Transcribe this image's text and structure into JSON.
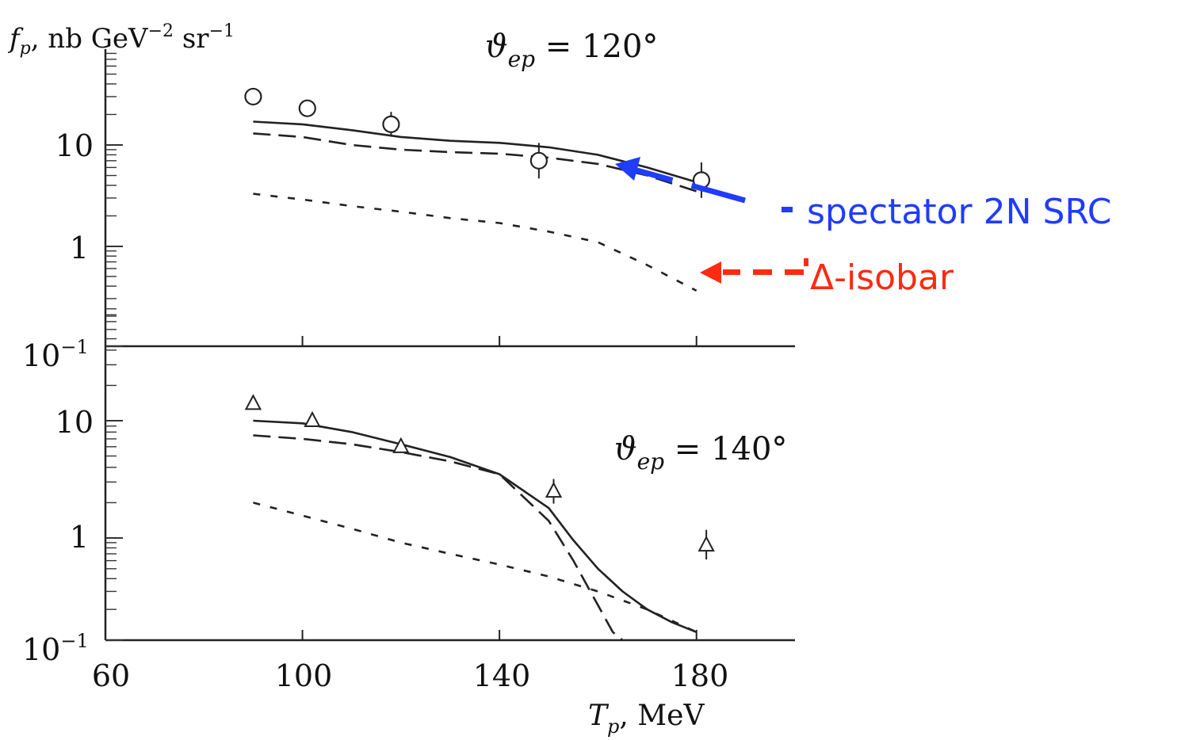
{
  "chart_data": [
    {
      "type": "line",
      "panel": "top",
      "annotation": "ϑ_ep = 120°",
      "xlim": [
        60,
        200
      ],
      "ylim": [
        0.1,
        80
      ],
      "yscale": "log",
      "grid": false,
      "series": [
        {
          "style": "solid",
          "x": [
            90,
            100,
            110,
            120,
            130,
            140,
            150,
            160,
            170,
            180
          ],
          "y": [
            17,
            16,
            14,
            12,
            11,
            10.5,
            9.5,
            8,
            6,
            4.3
          ]
        },
        {
          "style": "dashed",
          "x": [
            90,
            100,
            110,
            120,
            130,
            140,
            150,
            160,
            170,
            180
          ],
          "y": [
            13,
            12,
            10,
            9,
            8.5,
            8.2,
            7.5,
            6.5,
            5,
            3.5
          ]
        },
        {
          "style": "dotted",
          "x": [
            90,
            100,
            110,
            120,
            130,
            140,
            150,
            160,
            170,
            180
          ],
          "y": [
            3.3,
            2.9,
            2.5,
            2.2,
            1.9,
            1.7,
            1.4,
            1.1,
            0.65,
            0.36
          ]
        },
        {
          "style": "points-circle",
          "x": [
            90,
            101,
            118,
            148,
            181
          ],
          "y": [
            30,
            23,
            16,
            7,
            4.5
          ],
          "err": [
            0,
            0,
            0.35,
            0.5,
            0.5
          ]
        }
      ]
    },
    {
      "type": "line",
      "panel": "bottom",
      "annotation": "ϑ_ep = 140°",
      "xlim": [
        60,
        200
      ],
      "ylim": [
        0.1,
        80
      ],
      "yscale": "log",
      "grid": false,
      "series": [
        {
          "style": "solid",
          "x": [
            90,
            100,
            110,
            120,
            130,
            140,
            150,
            155,
            160,
            165,
            170,
            175,
            180
          ],
          "y": [
            10,
            9.5,
            8,
            6.3,
            4.9,
            3.5,
            1.8,
            0.95,
            0.5,
            0.3,
            0.2,
            0.15,
            0.12
          ]
        },
        {
          "style": "dashed",
          "x": [
            90,
            100,
            110,
            120,
            130,
            140,
            150,
            155,
            160,
            163,
            165
          ],
          "y": [
            7.5,
            7,
            6.3,
            5.4,
            4.5,
            3.5,
            1.4,
            0.6,
            0.22,
            0.12,
            0.1
          ]
        },
        {
          "style": "dotted",
          "x": [
            90,
            100,
            110,
            120,
            130,
            140,
            150,
            160,
            170,
            180
          ],
          "y": [
            2,
            1.55,
            1.2,
            0.9,
            0.7,
            0.55,
            0.42,
            0.3,
            0.2,
            0.12
          ]
        },
        {
          "style": "points-triangle",
          "x": [
            90,
            102,
            120,
            151,
            182
          ],
          "y": [
            14,
            10,
            6,
            2.5,
            0.85
          ],
          "err": [
            0,
            0,
            0,
            0.3,
            0.4
          ]
        }
      ]
    }
  ],
  "axes": {
    "ylabel_prefix": "f",
    "ylabel_sub": "p",
    "ylabel_main": ", nb GeV",
    "ylabel_exp1": "−2",
    "ylabel_sr": " sr",
    "ylabel_exp2": "−1",
    "xlabel_main": "T",
    "xlabel_sub": "p",
    "xlabel_unit": ", MeV",
    "x_ticks": [
      "60",
      "100",
      "140",
      "180"
    ],
    "y_ticks_top": [
      "10",
      "1"
    ],
    "y_ticks_bottom": [
      "10",
      "1",
      "10"
    ],
    "y_tick_exp": "−1"
  },
  "annotations": {
    "top_angle_sym": "ϑ",
    "top_angle_sub": "ep",
    "top_angle_val": " = 120°",
    "bottom_angle_sym": "ϑ",
    "bottom_angle_sub": "ep",
    "bottom_angle_val": " = 140°",
    "legend_src_label": "spectator 2N SRC",
    "legend_src_color": "#1f3cff",
    "legend_delta_label": "Δ-isobar",
    "legend_delta_color": "#ff2a12"
  }
}
